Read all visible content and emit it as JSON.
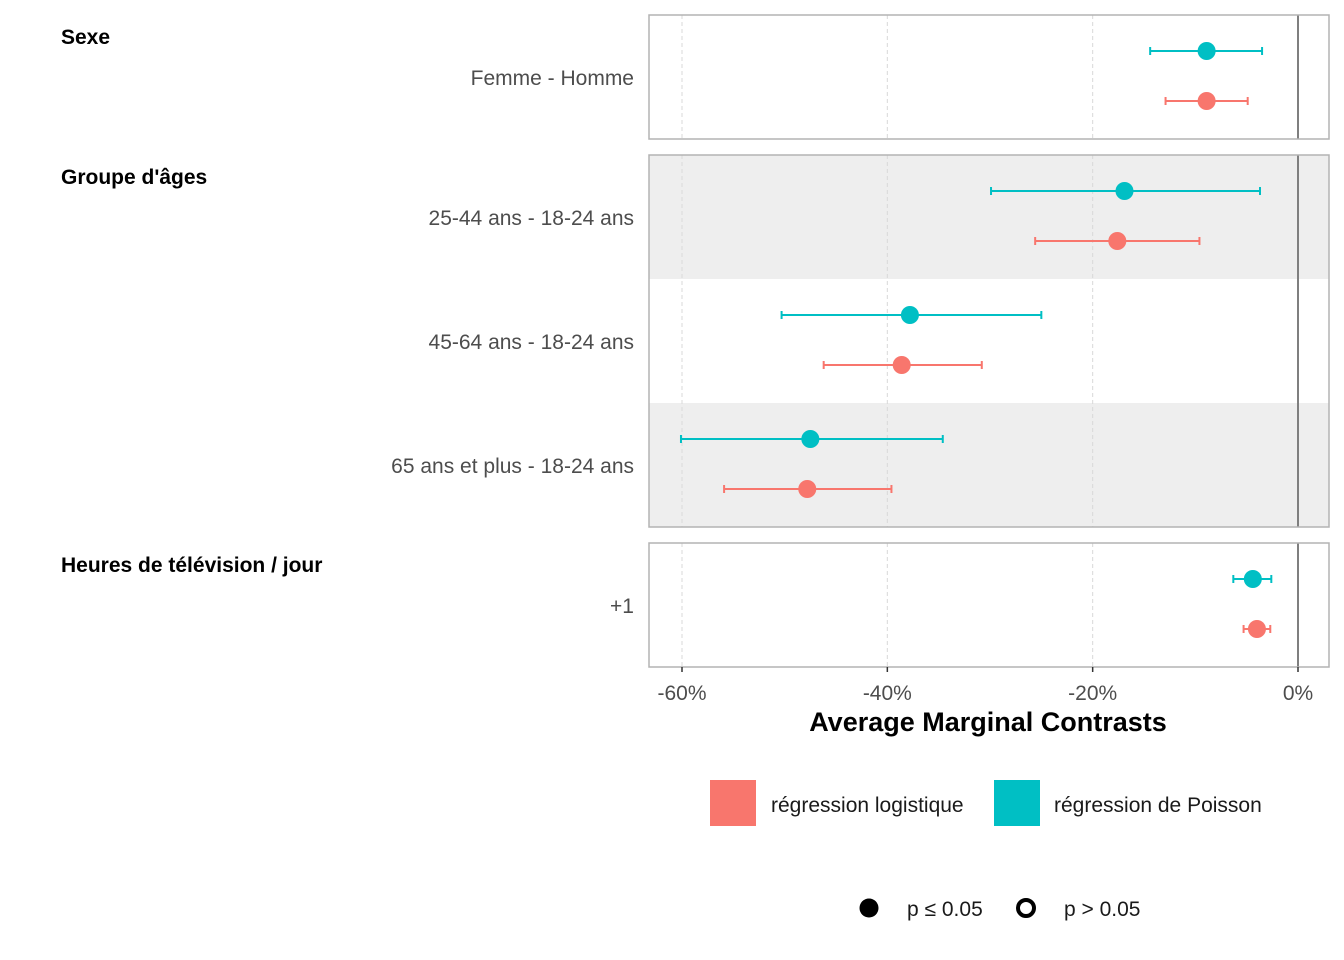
{
  "chart_data": {
    "type": "scatter",
    "subtype": "forest-plot",
    "xlabel": "Average Marginal Contrasts",
    "xlim": [
      -0.63,
      0.03
    ],
    "xticks": [
      {
        "value": -0.6,
        "label": "-60%"
      },
      {
        "value": -0.4,
        "label": "-40%"
      },
      {
        "value": -0.2,
        "label": "-20%"
      },
      {
        "value": 0,
        "label": "0%"
      }
    ],
    "reference_line": 0,
    "grid": true,
    "groups": [
      {
        "title": "Sexe",
        "rows": [
          {
            "label": "Femme - Homme",
            "poisson": {
              "estimate": -0.089,
              "low": -0.144,
              "high": -0.035
            },
            "logistique": {
              "estimate": -0.089,
              "low": -0.129,
              "high": -0.049
            }
          }
        ]
      },
      {
        "title": "Groupe d'âges",
        "rows": [
          {
            "label": "25-44 ans - 18-24 ans",
            "poisson": {
              "estimate": -0.169,
              "low": -0.299,
              "high": -0.037
            },
            "logistique": {
              "estimate": -0.176,
              "low": -0.256,
              "high": -0.096
            }
          },
          {
            "label": "45-64 ans - 18-24 ans",
            "poisson": {
              "estimate": -0.378,
              "low": -0.503,
              "high": -0.25
            },
            "logistique": {
              "estimate": -0.386,
              "low": -0.462,
              "high": -0.308
            }
          },
          {
            "label": "65 ans et plus - 18-24 ans",
            "poisson": {
              "estimate": -0.475,
              "low": -0.601,
              "high": -0.346
            },
            "logistique": {
              "estimate": -0.478,
              "low": -0.559,
              "high": -0.396
            }
          }
        ]
      },
      {
        "title": "Heures de télévision / jour",
        "rows": [
          {
            "label": "+1",
            "poisson": {
              "estimate": -0.044,
              "low": -0.063,
              "high": -0.026
            },
            "logistique": {
              "estimate": -0.04,
              "low": -0.053,
              "high": -0.027
            }
          }
        ]
      }
    ],
    "series": [
      {
        "key": "logistique",
        "name": "régression logistique",
        "color": "#F8766D"
      },
      {
        "key": "poisson",
        "name": "régression de Poisson",
        "color": "#00BFC4"
      }
    ],
    "significance_legend": [
      {
        "label": "p ≤ 0.05",
        "filled": true
      },
      {
        "label": "p > 0.05",
        "filled": false
      }
    ],
    "legend_position": "bottom"
  }
}
